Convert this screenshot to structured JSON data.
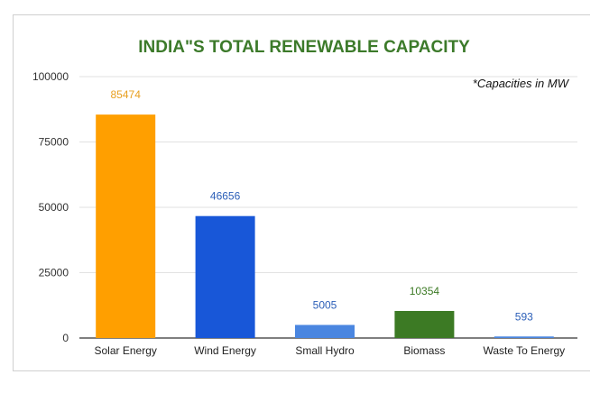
{
  "chart_data": {
    "type": "bar",
    "title": "INDIA\"S TOTAL RENEWABLE CAPACITY",
    "annotation": "*Capacities in MW",
    "categories": [
      "Solar Energy",
      "Wind Energy",
      "Small Hydro",
      "Biomass",
      "Waste To Energy"
    ],
    "values": [
      85474,
      46656,
      5005,
      10354,
      593
    ],
    "colors": [
      "#ff9f00",
      "#1857d8",
      "#4a86e0",
      "#3c7a24",
      "#4a86e0"
    ],
    "label_colors": [
      "#e8a020",
      "#2c5fb8",
      "#2c5fb8",
      "#3c7a24",
      "#2c5fb8"
    ],
    "yticks": [
      "0",
      "25000",
      "50000",
      "75000",
      "100000"
    ],
    "ylim": [
      0,
      100000
    ],
    "xlabel": "",
    "ylabel": "",
    "grid": true,
    "legend": "none"
  }
}
